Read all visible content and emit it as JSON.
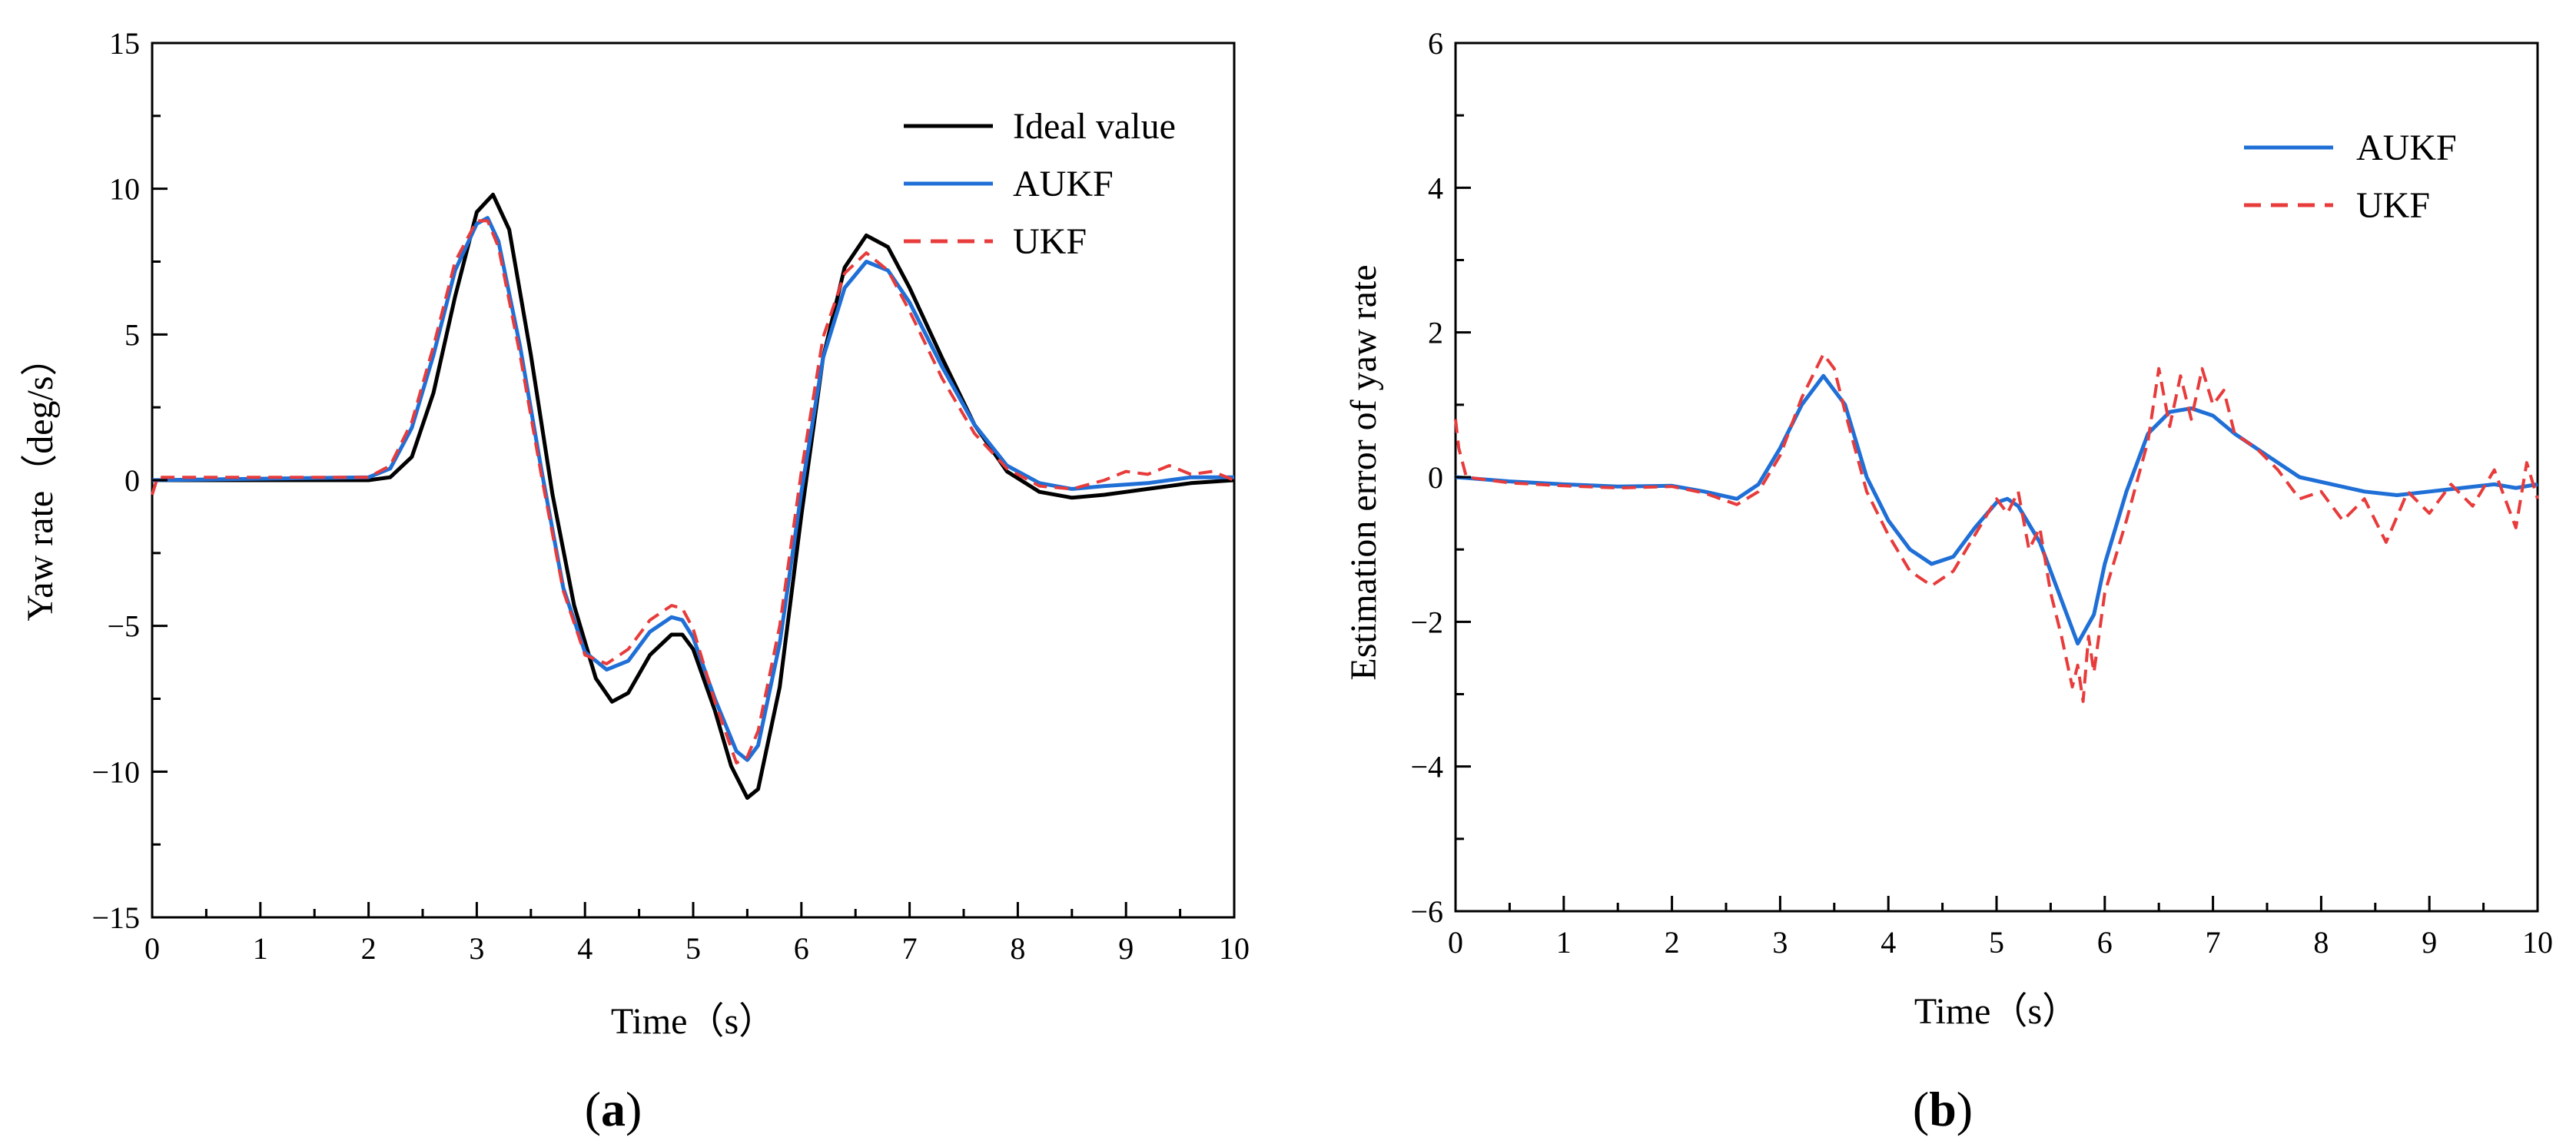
{
  "panel_labels": [
    {
      "open": "(",
      "letter": "a",
      "close": ")"
    },
    {
      "open": "(",
      "letter": "b",
      "close": ")"
    }
  ],
  "colors": {
    "ideal": "#000000",
    "aukf": "#1f6fd6",
    "ukf": "#e83b3b"
  },
  "chart_data": [
    {
      "type": "line",
      "title": "",
      "xlabel": "Time（s）",
      "ylabel": "Yaw rate（deg/s）",
      "xlim": [
        0,
        10
      ],
      "ylim": [
        -15,
        15
      ],
      "xticks": [
        0,
        1,
        2,
        3,
        4,
        5,
        6,
        7,
        8,
        9,
        10
      ],
      "yticks": [
        -15,
        -10,
        -5,
        0,
        5,
        10,
        15
      ],
      "grid": false,
      "legend": "top-right",
      "series": [
        {
          "name": "Ideal value",
          "style": "solid",
          "color": "#000000",
          "x": [
            0,
            2.0,
            2.2,
            2.4,
            2.6,
            2.8,
            3.0,
            3.15,
            3.3,
            3.5,
            3.7,
            3.9,
            4.1,
            4.25,
            4.4,
            4.6,
            4.8,
            4.9,
            5.0,
            5.2,
            5.35,
            5.5,
            5.6,
            5.8,
            6.0,
            6.2,
            6.4,
            6.6,
            6.8,
            7.0,
            7.3,
            7.6,
            7.9,
            8.2,
            8.5,
            8.8,
            9.2,
            9.6,
            10
          ],
          "y": [
            0,
            0,
            0.1,
            0.8,
            3.0,
            6.3,
            9.2,
            9.8,
            8.6,
            4.3,
            -0.5,
            -4.3,
            -6.8,
            -7.6,
            -7.3,
            -6.0,
            -5.3,
            -5.3,
            -5.8,
            -7.9,
            -9.8,
            -10.9,
            -10.6,
            -7.1,
            -1.2,
            4.2,
            7.3,
            8.4,
            8.0,
            6.6,
            4.2,
            1.9,
            0.3,
            -0.4,
            -0.6,
            -0.5,
            -0.3,
            -0.1,
            0
          ]
        },
        {
          "name": "AUKF",
          "style": "solid",
          "color": "#1f6fd6",
          "x": [
            0,
            2.0,
            2.2,
            2.4,
            2.6,
            2.8,
            3.0,
            3.1,
            3.2,
            3.4,
            3.6,
            3.8,
            4.0,
            4.2,
            4.4,
            4.6,
            4.8,
            4.9,
            5.0,
            5.2,
            5.4,
            5.5,
            5.6,
            5.8,
            6.0,
            6.2,
            6.4,
            6.6,
            6.8,
            7.0,
            7.3,
            7.6,
            7.9,
            8.2,
            8.5,
            8.8,
            9.2,
            9.6,
            10
          ],
          "y": [
            0,
            0.1,
            0.4,
            1.8,
            4.3,
            7.2,
            8.8,
            9.0,
            8.2,
            4.6,
            0.3,
            -3.7,
            -5.9,
            -6.5,
            -6.2,
            -5.2,
            -4.7,
            -4.8,
            -5.4,
            -7.5,
            -9.3,
            -9.6,
            -9.1,
            -5.6,
            -0.4,
            4.2,
            6.6,
            7.5,
            7.2,
            6.1,
            3.9,
            1.9,
            0.5,
            -0.1,
            -0.3,
            -0.2,
            -0.1,
            0.1,
            0.1
          ]
        },
        {
          "name": "UKF",
          "style": "dashed",
          "color": "#e83b3b",
          "x": [
            0,
            0.05,
            2.0,
            2.2,
            2.4,
            2.6,
            2.8,
            3.0,
            3.1,
            3.2,
            3.4,
            3.6,
            3.8,
            4.0,
            4.2,
            4.4,
            4.6,
            4.8,
            4.9,
            5.0,
            5.2,
            5.4,
            5.5,
            5.6,
            5.8,
            6.0,
            6.2,
            6.4,
            6.6,
            6.8,
            7.0,
            7.3,
            7.6,
            7.9,
            8.2,
            8.5,
            8.8,
            9.0,
            9.2,
            9.4,
            9.6,
            9.8,
            10
          ],
          "y": [
            -0.5,
            0.1,
            0.1,
            0.5,
            2.0,
            4.6,
            7.5,
            8.9,
            8.9,
            8.0,
            4.3,
            0.1,
            -3.8,
            -6.0,
            -6.3,
            -5.8,
            -4.8,
            -4.3,
            -4.4,
            -5.1,
            -7.6,
            -9.7,
            -9.5,
            -8.6,
            -5.0,
            0.3,
            4.9,
            7.1,
            7.8,
            7.2,
            5.8,
            3.5,
            1.6,
            0.4,
            -0.2,
            -0.3,
            0.0,
            0.3,
            0.2,
            0.5,
            0.2,
            0.3,
            0.0
          ]
        }
      ]
    },
    {
      "type": "line",
      "title": "",
      "xlabel": "Time（s）",
      "ylabel": "Estimation error of yaw rate",
      "xlim": [
        0,
        10
      ],
      "ylim": [
        -6,
        6
      ],
      "xticks": [
        0,
        1,
        2,
        3,
        4,
        5,
        6,
        7,
        8,
        9,
        10
      ],
      "yticks": [
        -6,
        -4,
        -2,
        0,
        2,
        4,
        6
      ],
      "grid": false,
      "legend": "top-right",
      "series": [
        {
          "name": "AUKF",
          "style": "solid",
          "color": "#1f6fd6",
          "x": [
            0,
            0.5,
            1.0,
            1.5,
            2.0,
            2.3,
            2.6,
            2.8,
            3.0,
            3.2,
            3.4,
            3.6,
            3.8,
            4.0,
            4.2,
            4.4,
            4.6,
            4.8,
            5.0,
            5.1,
            5.2,
            5.4,
            5.6,
            5.75,
            5.9,
            6.0,
            6.2,
            6.4,
            6.6,
            6.8,
            7.0,
            7.2,
            7.5,
            7.8,
            8.1,
            8.4,
            8.7,
            9.0,
            9.3,
            9.6,
            9.8,
            10
          ],
          "y": [
            0,
            -0.06,
            -0.1,
            -0.13,
            -0.12,
            -0.2,
            -0.3,
            -0.1,
            0.4,
            1.0,
            1.4,
            1.0,
            0.0,
            -0.6,
            -1.0,
            -1.2,
            -1.1,
            -0.7,
            -0.35,
            -0.3,
            -0.4,
            -0.9,
            -1.7,
            -2.3,
            -1.9,
            -1.2,
            -0.2,
            0.6,
            0.9,
            0.95,
            0.85,
            0.6,
            0.3,
            0.0,
            -0.1,
            -0.2,
            -0.25,
            -0.2,
            -0.15,
            -0.1,
            -0.15,
            -0.1
          ]
        },
        {
          "name": "UKF",
          "style": "dashed",
          "color": "#e83b3b",
          "x": [
            0,
            0.03,
            0.1,
            0.5,
            1.0,
            1.5,
            2.0,
            2.3,
            2.6,
            2.8,
            3.0,
            3.2,
            3.4,
            3.5,
            3.6,
            3.8,
            4.0,
            4.2,
            4.4,
            4.6,
            4.8,
            5.0,
            5.1,
            5.2,
            5.3,
            5.4,
            5.5,
            5.6,
            5.7,
            5.75,
            5.8,
            5.85,
            5.9,
            6.0,
            6.2,
            6.4,
            6.5,
            6.6,
            6.7,
            6.8,
            6.9,
            7.0,
            7.1,
            7.2,
            7.4,
            7.6,
            7.8,
            8.0,
            8.2,
            8.4,
            8.6,
            8.8,
            9.0,
            9.2,
            9.4,
            9.6,
            9.8,
            9.9,
            10
          ],
          "y": [
            0.8,
            0.4,
            0.0,
            -0.08,
            -0.12,
            -0.15,
            -0.13,
            -0.22,
            -0.38,
            -0.2,
            0.3,
            1.1,
            1.7,
            1.5,
            0.9,
            -0.2,
            -0.8,
            -1.3,
            -1.5,
            -1.3,
            -0.8,
            -0.3,
            -0.5,
            -0.2,
            -1.0,
            -0.7,
            -1.6,
            -2.2,
            -2.9,
            -2.6,
            -3.1,
            -2.2,
            -2.7,
            -1.6,
            -0.6,
            0.5,
            1.5,
            0.7,
            1.4,
            0.8,
            1.5,
            1.0,
            1.2,
            0.6,
            0.4,
            0.1,
            -0.3,
            -0.2,
            -0.6,
            -0.3,
            -0.9,
            -0.2,
            -0.5,
            -0.1,
            -0.4,
            0.1,
            -0.7,
            0.2,
            -0.3
          ]
        }
      ]
    }
  ]
}
